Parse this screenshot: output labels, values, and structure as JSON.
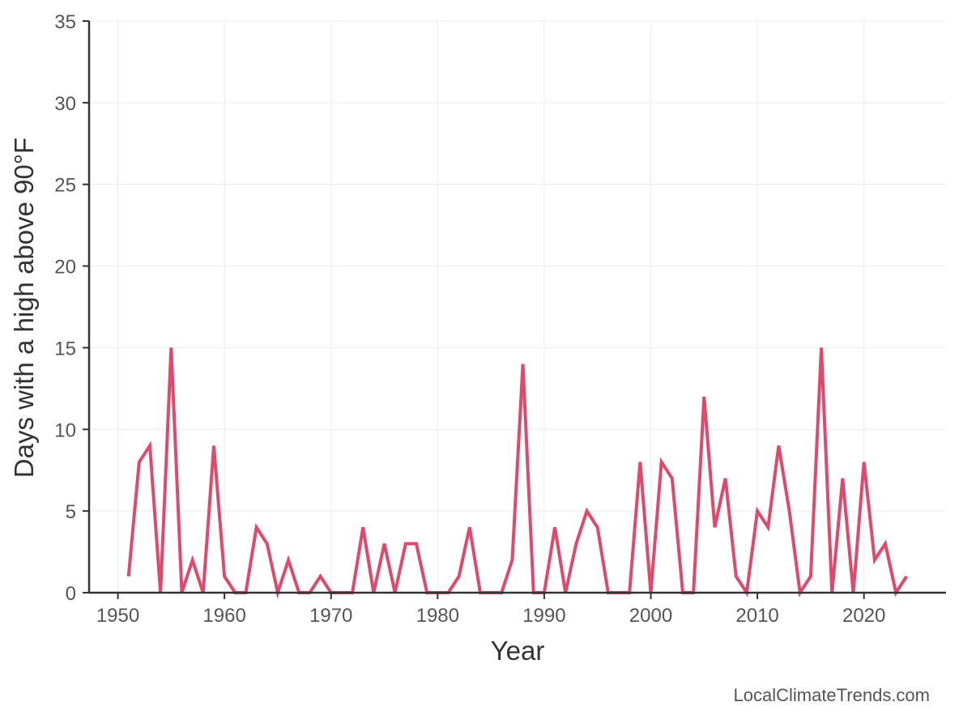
{
  "chart_data": {
    "type": "line",
    "xlabel": "Year",
    "ylabel": "Days with a high above 90°F",
    "xlim": [
      1947.3,
      2027.7
    ],
    "ylim": [
      0,
      35
    ],
    "x_ticks": [
      1950,
      1960,
      1970,
      1980,
      1990,
      2000,
      2010,
      2020
    ],
    "y_ticks": [
      0,
      5,
      10,
      15,
      20,
      25,
      30,
      35
    ],
    "grid": true,
    "line_color": "#e0496b",
    "series": [
      {
        "x": [
          1951,
          1952,
          1953,
          1954,
          1955,
          1956,
          1957,
          1958,
          1959,
          1960,
          1961,
          1962,
          1963,
          1964,
          1965,
          1966,
          1967,
          1968,
          1969,
          1970,
          1971,
          1972,
          1973,
          1974,
          1975,
          1976,
          1977,
          1978,
          1979,
          1980,
          1981,
          1982,
          1983,
          1984,
          1985,
          1986,
          1987,
          1988,
          1989,
          1990,
          1991,
          1992,
          1993,
          1994,
          1995,
          1996,
          1997,
          1998,
          1999,
          2000,
          2001,
          2002,
          2003,
          2004,
          2005,
          2006,
          2007,
          2008,
          2009,
          2010,
          2011,
          2012,
          2013,
          2014,
          2015,
          2016,
          2017,
          2018,
          2019,
          2020,
          2021,
          2022,
          2023,
          2024
        ],
        "values": [
          1,
          8,
          9,
          0,
          15,
          0,
          2,
          0,
          9,
          1,
          0,
          0,
          4,
          3,
          0,
          2,
          0,
          0,
          1,
          0,
          0,
          0,
          4,
          0,
          3,
          0,
          3,
          3,
          0,
          0,
          0,
          1,
          4,
          0,
          0,
          0,
          2,
          14,
          0,
          0,
          4,
          0,
          3,
          5,
          4,
          0,
          0,
          0,
          8,
          0,
          8,
          7,
          0,
          0,
          12,
          4,
          7,
          1,
          0,
          5,
          4,
          9,
          5,
          0,
          1,
          15,
          0,
          7,
          0,
          8,
          2,
          3,
          0,
          1
        ]
      }
    ]
  },
  "credit": "LocalClimateTrends.com"
}
